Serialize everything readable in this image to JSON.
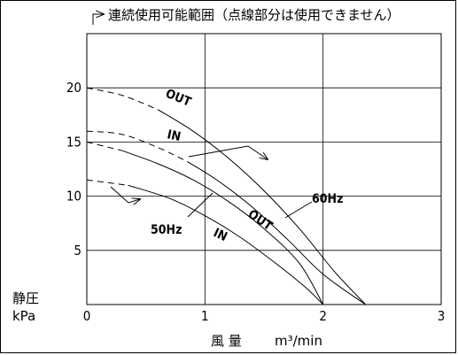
{
  "chart_data": {
    "type": "line",
    "title": "連続使用可能範囲（点線部分は使用できません）",
    "xlabel": "風 量",
    "xunit": "m³/min",
    "ylabel": "静圧",
    "yunit": "kPa",
    "xlim": [
      0,
      3
    ],
    "ylim": [
      0,
      25
    ],
    "x_ticks": [
      "0",
      "1",
      "2",
      "3"
    ],
    "y_ticks": [
      "5",
      "10",
      "15",
      "20"
    ],
    "grid": true,
    "series": [
      {
        "name": "OUT",
        "freq": "60Hz",
        "dashed_until": 0.6,
        "x": [
          0,
          0.3,
          0.6,
          0.9,
          1.2,
          1.5,
          1.8,
          2.1,
          2.36
        ],
        "y": [
          20,
          19.3,
          18.0,
          16.0,
          13.5,
          10.5,
          7.0,
          3.0,
          0
        ]
      },
      {
        "name": "IN",
        "freq": "60Hz",
        "dashed_until": 0.85,
        "x": [
          0,
          0.3,
          0.6,
          0.85,
          1.1,
          1.4,
          1.7,
          2.0,
          2.36
        ],
        "y": [
          16,
          15.7,
          14.5,
          13.2,
          11.5,
          9.0,
          6.0,
          2.8,
          0
        ]
      },
      {
        "name": "OUT",
        "freq": "50Hz",
        "dashed_until": 0.3,
        "x": [
          0,
          0.3,
          0.6,
          0.9,
          1.2,
          1.5,
          1.8,
          2.0
        ],
        "y": [
          15,
          14.2,
          13.0,
          11.5,
          9.5,
          7.0,
          3.8,
          0
        ]
      },
      {
        "name": "IN",
        "freq": "50Hz",
        "dashed_until": 0.35,
        "x": [
          0,
          0.35,
          0.7,
          1.0,
          1.3,
          1.6,
          1.85,
          2.0
        ],
        "y": [
          11.5,
          11.0,
          9.8,
          8.2,
          6.2,
          3.8,
          1.6,
          0
        ]
      }
    ],
    "annotations": [
      {
        "text": "OUT"
      },
      {
        "text": "IN"
      },
      {
        "text": "OUT"
      },
      {
        "text": "IN"
      },
      {
        "text": "60Hz"
      },
      {
        "text": "50Hz"
      }
    ]
  }
}
